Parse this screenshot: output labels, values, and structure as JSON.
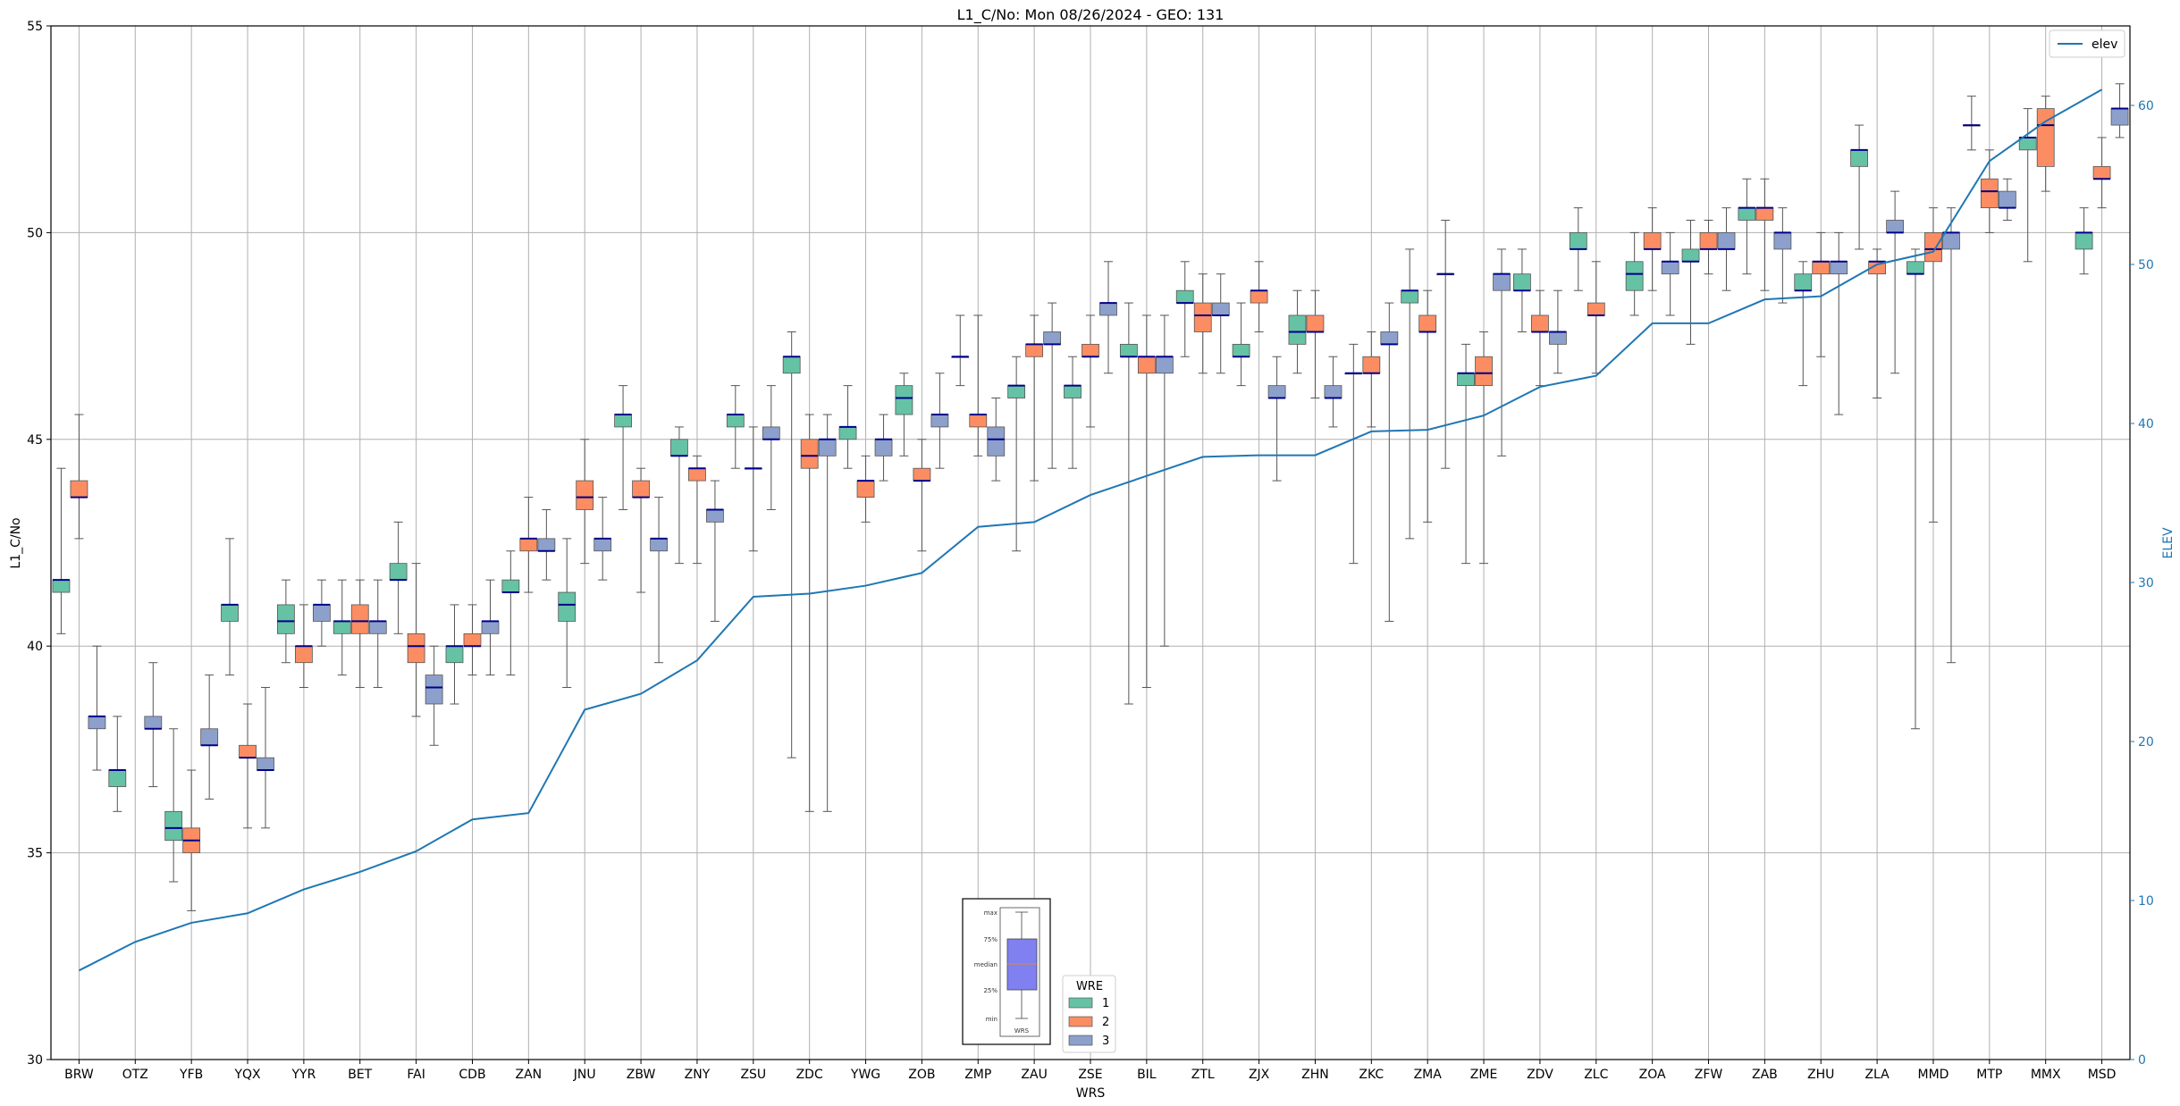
{
  "chart_data": {
    "type": "box",
    "title": "L1_C/No: Mon 08/26/2024 - GEO: 131",
    "xlabel": "WRS",
    "ylabel": "L1_C/No",
    "y2label": "ELEV",
    "ylim": [
      30,
      55
    ],
    "y2lim": [
      0,
      65
    ],
    "yticks": [
      30,
      35,
      40,
      45,
      50,
      55
    ],
    "y2ticks": [
      0,
      10,
      20,
      30,
      40,
      50,
      60
    ],
    "grid": true,
    "line_legend": {
      "label": "elev",
      "placement": "top-right"
    },
    "legend": {
      "title": "WRE",
      "placement": "bottom-center"
    },
    "colors": {
      "wre1": "#66c2a5",
      "wre2": "#fc8d62",
      "wre3": "#8da0cb",
      "median": "#00008b",
      "elev": "#1f77b4",
      "whisker": "#555555",
      "y2axis": "#1f77b4"
    },
    "wre_labels": [
      "1",
      "2",
      "3"
    ],
    "inset_legend": {
      "labels": [
        "max",
        "75%",
        "median",
        "25%",
        "min"
      ],
      "caption": "WRS",
      "box_color": "#8080f0"
    },
    "categories": [
      "BRW",
      "OTZ",
      "YFB",
      "YQX",
      "YYR",
      "BET",
      "FAI",
      "CDB",
      "ZAN",
      "JNU",
      "ZBW",
      "ZNY",
      "ZSU",
      "ZDC",
      "YWG",
      "ZOB",
      "ZMP",
      "ZAU",
      "ZSE",
      "BIL",
      "ZTL",
      "ZJX",
      "ZHN",
      "ZKC",
      "ZMA",
      "ZME",
      "ZDV",
      "ZLC",
      "ZOA",
      "ZFW",
      "ZAB",
      "ZHU",
      "ZLA",
      "MMD",
      "MTP",
      "MMX",
      "MSD"
    ],
    "elev": [
      5.6,
      7.4,
      8.6,
      9.2,
      10.7,
      11.8,
      13.1,
      15.1,
      15.5,
      22.0,
      23.0,
      25.1,
      29.1,
      29.3,
      29.8,
      30.6,
      33.5,
      33.8,
      35.5,
      36.7,
      37.9,
      38.0,
      38.0,
      39.5,
      39.6,
      40.5,
      42.3,
      43.0,
      46.3,
      46.3,
      47.8,
      48.0,
      50.0,
      50.8,
      56.5,
      59.0,
      61.0
    ],
    "boxes": [
      {
        "station": "BRW",
        "wre": 1,
        "min": 40.3,
        "q1": 41.3,
        "median": 41.6,
        "q3": 41.6,
        "max": 44.3
      },
      {
        "station": "BRW",
        "wre": 2,
        "min": 42.6,
        "q1": 43.6,
        "median": 43.6,
        "q3": 44.0,
        "max": 45.6
      },
      {
        "station": "BRW",
        "wre": 3,
        "min": 37.0,
        "q1": 38.0,
        "median": 38.3,
        "q3": 38.3,
        "max": 40.0
      },
      {
        "station": "OTZ",
        "wre": 1,
        "min": 36.0,
        "q1": 36.6,
        "median": 37.0,
        "q3": 37.0,
        "max": 38.3
      },
      {
        "station": "OTZ",
        "wre": 3,
        "min": 36.6,
        "q1": 38.0,
        "median": 38.0,
        "q3": 38.3,
        "max": 39.6
      },
      {
        "station": "YFB",
        "wre": 1,
        "min": 34.3,
        "q1": 35.3,
        "median": 35.6,
        "q3": 36.0,
        "max": 38.0
      },
      {
        "station": "YFB",
        "wre": 2,
        "min": 33.6,
        "q1": 35.0,
        "median": 35.3,
        "q3": 35.6,
        "max": 37.0
      },
      {
        "station": "YFB",
        "wre": 3,
        "min": 36.3,
        "q1": 37.6,
        "median": 37.6,
        "q3": 38.0,
        "max": 39.3
      },
      {
        "station": "YQX",
        "wre": 1,
        "min": 39.3,
        "q1": 40.6,
        "median": 41.0,
        "q3": 41.0,
        "max": 42.6
      },
      {
        "station": "YQX",
        "wre": 2,
        "min": 35.6,
        "q1": 37.3,
        "median": 37.3,
        "q3": 37.6,
        "max": 38.6
      },
      {
        "station": "YQX",
        "wre": 3,
        "min": 35.6,
        "q1": 37.0,
        "median": 37.0,
        "q3": 37.3,
        "max": 39.0
      },
      {
        "station": "YYR",
        "wre": 1,
        "min": 39.6,
        "q1": 40.3,
        "median": 40.6,
        "q3": 41.0,
        "max": 41.6
      },
      {
        "station": "YYR",
        "wre": 2,
        "min": 39.0,
        "q1": 39.6,
        "median": 40.0,
        "q3": 40.0,
        "max": 41.0
      },
      {
        "station": "YYR",
        "wre": 3,
        "min": 40.0,
        "q1": 40.6,
        "median": 41.0,
        "q3": 41.0,
        "max": 41.6
      },
      {
        "station": "BET",
        "wre": 1,
        "min": 39.3,
        "q1": 40.3,
        "median": 40.6,
        "q3": 40.6,
        "max": 41.6
      },
      {
        "station": "BET",
        "wre": 2,
        "min": 39.0,
        "q1": 40.3,
        "median": 40.6,
        "q3": 41.0,
        "max": 41.6
      },
      {
        "station": "BET",
        "wre": 3,
        "min": 39.0,
        "q1": 40.3,
        "median": 40.6,
        "q3": 40.6,
        "max": 41.6
      },
      {
        "station": "FAI",
        "wre": 1,
        "min": 40.3,
        "q1": 41.6,
        "median": 41.6,
        "q3": 42.0,
        "max": 43.0
      },
      {
        "station": "FAI",
        "wre": 2,
        "min": 38.3,
        "q1": 39.6,
        "median": 40.0,
        "q3": 40.3,
        "max": 42.0
      },
      {
        "station": "FAI",
        "wre": 3,
        "min": 37.6,
        "q1": 38.6,
        "median": 39.0,
        "q3": 39.3,
        "max": 40.0
      },
      {
        "station": "CDB",
        "wre": 1,
        "min": 38.6,
        "q1": 39.6,
        "median": 40.0,
        "q3": 40.0,
        "max": 41.0
      },
      {
        "station": "CDB",
        "wre": 2,
        "min": 39.3,
        "q1": 40.0,
        "median": 40.0,
        "q3": 40.3,
        "max": 41.0
      },
      {
        "station": "CDB",
        "wre": 3,
        "min": 39.3,
        "q1": 40.3,
        "median": 40.6,
        "q3": 40.6,
        "max": 41.6
      },
      {
        "station": "ZAN",
        "wre": 1,
        "min": 39.3,
        "q1": 41.3,
        "median": 41.3,
        "q3": 41.6,
        "max": 42.3
      },
      {
        "station": "ZAN",
        "wre": 2,
        "min": 41.3,
        "q1": 42.3,
        "median": 42.6,
        "q3": 42.6,
        "max": 43.6
      },
      {
        "station": "ZAN",
        "wre": 3,
        "min": 41.6,
        "q1": 42.3,
        "median": 42.3,
        "q3": 42.6,
        "max": 43.3
      },
      {
        "station": "JNU",
        "wre": 1,
        "min": 39.0,
        "q1": 40.6,
        "median": 41.0,
        "q3": 41.3,
        "max": 42.6
      },
      {
        "station": "JNU",
        "wre": 2,
        "min": 42.0,
        "q1": 43.3,
        "median": 43.6,
        "q3": 44.0,
        "max": 45.0
      },
      {
        "station": "JNU",
        "wre": 3,
        "min": 41.6,
        "q1": 42.3,
        "median": 42.6,
        "q3": 42.6,
        "max": 43.6
      },
      {
        "station": "ZBW",
        "wre": 1,
        "min": 43.3,
        "q1": 45.3,
        "median": 45.6,
        "q3": 45.6,
        "max": 46.3
      },
      {
        "station": "ZBW",
        "wre": 2,
        "min": 41.3,
        "q1": 43.6,
        "median": 43.6,
        "q3": 44.0,
        "max": 44.3
      },
      {
        "station": "ZBW",
        "wre": 3,
        "min": 39.6,
        "q1": 42.3,
        "median": 42.6,
        "q3": 42.6,
        "max": 43.6
      },
      {
        "station": "ZNY",
        "wre": 1,
        "min": 42.0,
        "q1": 44.6,
        "median": 44.6,
        "q3": 45.0,
        "max": 45.3
      },
      {
        "station": "ZNY",
        "wre": 2,
        "min": 42.0,
        "q1": 44.0,
        "median": 44.3,
        "q3": 44.3,
        "max": 44.6
      },
      {
        "station": "ZNY",
        "wre": 3,
        "min": 40.6,
        "q1": 43.0,
        "median": 43.3,
        "q3": 43.3,
        "max": 44.0
      },
      {
        "station": "ZSU",
        "wre": 1,
        "min": 44.3,
        "q1": 45.3,
        "median": 45.6,
        "q3": 45.6,
        "max": 46.3
      },
      {
        "station": "ZSU",
        "wre": 2,
        "min": 42.3,
        "q1": 44.3,
        "median": 44.3,
        "q3": 44.3,
        "max": 45.3
      },
      {
        "station": "ZSU",
        "wre": 3,
        "min": 43.3,
        "q1": 45.0,
        "median": 45.0,
        "q3": 45.3,
        "max": 46.3
      },
      {
        "station": "ZDC",
        "wre": 1,
        "min": 37.3,
        "q1": 46.6,
        "median": 47.0,
        "q3": 47.0,
        "max": 47.6
      },
      {
        "station": "ZDC",
        "wre": 2,
        "min": 36.0,
        "q1": 44.3,
        "median": 44.6,
        "q3": 45.0,
        "max": 45.6
      },
      {
        "station": "ZDC",
        "wre": 3,
        "min": 36.0,
        "q1": 44.6,
        "median": 45.0,
        "q3": 45.0,
        "max": 45.6
      },
      {
        "station": "YWG",
        "wre": 1,
        "min": 44.3,
        "q1": 45.0,
        "median": 45.3,
        "q3": 45.3,
        "max": 46.3
      },
      {
        "station": "YWG",
        "wre": 2,
        "min": 43.0,
        "q1": 43.6,
        "median": 44.0,
        "q3": 44.0,
        "max": 44.6
      },
      {
        "station": "YWG",
        "wre": 3,
        "min": 44.0,
        "q1": 44.6,
        "median": 45.0,
        "q3": 45.0,
        "max": 45.6
      },
      {
        "station": "ZOB",
        "wre": 1,
        "min": 44.6,
        "q1": 45.6,
        "median": 46.0,
        "q3": 46.3,
        "max": 46.6
      },
      {
        "station": "ZOB",
        "wre": 2,
        "min": 42.3,
        "q1": 44.0,
        "median": 44.0,
        "q3": 44.3,
        "max": 45.0
      },
      {
        "station": "ZOB",
        "wre": 3,
        "min": 44.3,
        "q1": 45.3,
        "median": 45.6,
        "q3": 45.6,
        "max": 46.6
      },
      {
        "station": "ZMP",
        "wre": 1,
        "min": 46.3,
        "q1": 47.0,
        "median": 47.0,
        "q3": 47.0,
        "max": 48.0
      },
      {
        "station": "ZMP",
        "wre": 2,
        "min": 44.6,
        "q1": 45.3,
        "median": 45.6,
        "q3": 45.6,
        "max": 48.0
      },
      {
        "station": "ZMP",
        "wre": 3,
        "min": 44.0,
        "q1": 44.6,
        "median": 45.0,
        "q3": 45.3,
        "max": 46.0
      },
      {
        "station": "ZAU",
        "wre": 1,
        "min": 42.3,
        "q1": 46.0,
        "median": 46.3,
        "q3": 46.3,
        "max": 47.0
      },
      {
        "station": "ZAU",
        "wre": 2,
        "min": 44.0,
        "q1": 47.0,
        "median": 47.3,
        "q3": 47.3,
        "max": 48.0
      },
      {
        "station": "ZAU",
        "wre": 3,
        "min": 44.3,
        "q1": 47.3,
        "median": 47.3,
        "q3": 47.6,
        "max": 48.3
      },
      {
        "station": "ZSE",
        "wre": 1,
        "min": 44.3,
        "q1": 46.0,
        "median": 46.3,
        "q3": 46.3,
        "max": 47.0
      },
      {
        "station": "ZSE",
        "wre": 2,
        "min": 45.3,
        "q1": 47.0,
        "median": 47.0,
        "q3": 47.3,
        "max": 48.0
      },
      {
        "station": "ZSE",
        "wre": 3,
        "min": 46.6,
        "q1": 48.0,
        "median": 48.3,
        "q3": 48.3,
        "max": 49.3
      },
      {
        "station": "BIL",
        "wre": 1,
        "min": 38.6,
        "q1": 47.0,
        "median": 47.0,
        "q3": 47.3,
        "max": 48.3
      },
      {
        "station": "BIL",
        "wre": 2,
        "min": 39.0,
        "q1": 46.6,
        "median": 47.0,
        "q3": 47.0,
        "max": 48.0
      },
      {
        "station": "BIL",
        "wre": 3,
        "min": 40.0,
        "q1": 46.6,
        "median": 47.0,
        "q3": 47.0,
        "max": 48.0
      },
      {
        "station": "ZTL",
        "wre": 1,
        "min": 47.0,
        "q1": 48.3,
        "median": 48.3,
        "q3": 48.6,
        "max": 49.3
      },
      {
        "station": "ZTL",
        "wre": 2,
        "min": 46.6,
        "q1": 47.6,
        "median": 48.0,
        "q3": 48.3,
        "max": 49.0
      },
      {
        "station": "ZTL",
        "wre": 3,
        "min": 46.6,
        "q1": 48.0,
        "median": 48.0,
        "q3": 48.3,
        "max": 49.0
      },
      {
        "station": "ZJX",
        "wre": 1,
        "min": 46.3,
        "q1": 47.0,
        "median": 47.0,
        "q3": 47.3,
        "max": 48.3
      },
      {
        "station": "ZJX",
        "wre": 2,
        "min": 47.6,
        "q1": 48.3,
        "median": 48.6,
        "q3": 48.6,
        "max": 49.3
      },
      {
        "station": "ZJX",
        "wre": 3,
        "min": 44.0,
        "q1": 46.0,
        "median": 46.0,
        "q3": 46.3,
        "max": 47.0
      },
      {
        "station": "ZHN",
        "wre": 1,
        "min": 46.6,
        "q1": 47.3,
        "median": 47.6,
        "q3": 48.0,
        "max": 48.6
      },
      {
        "station": "ZHN",
        "wre": 2,
        "min": 46.0,
        "q1": 47.6,
        "median": 47.6,
        "q3": 48.0,
        "max": 48.6
      },
      {
        "station": "ZHN",
        "wre": 3,
        "min": 45.3,
        "q1": 46.0,
        "median": 46.0,
        "q3": 46.3,
        "max": 47.0
      },
      {
        "station": "ZKC",
        "wre": 1,
        "min": 42.0,
        "q1": 46.6,
        "median": 46.6,
        "q3": 46.6,
        "max": 47.3
      },
      {
        "station": "ZKC",
        "wre": 2,
        "min": 45.3,
        "q1": 46.6,
        "median": 46.6,
        "q3": 47.0,
        "max": 47.6
      },
      {
        "station": "ZKC",
        "wre": 3,
        "min": 40.6,
        "q1": 47.3,
        "median": 47.3,
        "q3": 47.6,
        "max": 48.3
      },
      {
        "station": "ZMA",
        "wre": 1,
        "min": 42.6,
        "q1": 48.3,
        "median": 48.6,
        "q3": 48.6,
        "max": 49.6
      },
      {
        "station": "ZMA",
        "wre": 2,
        "min": 43.0,
        "q1": 47.6,
        "median": 47.6,
        "q3": 48.0,
        "max": 48.6
      },
      {
        "station": "ZMA",
        "wre": 3,
        "min": 44.3,
        "q1": 49.0,
        "median": 49.0,
        "q3": 49.0,
        "max": 50.3
      },
      {
        "station": "ZME",
        "wre": 1,
        "min": 42.0,
        "q1": 46.3,
        "median": 46.6,
        "q3": 46.6,
        "max": 47.3
      },
      {
        "station": "ZME",
        "wre": 2,
        "min": 42.0,
        "q1": 46.3,
        "median": 46.6,
        "q3": 47.0,
        "max": 47.6
      },
      {
        "station": "ZME",
        "wre": 3,
        "min": 44.6,
        "q1": 48.6,
        "median": 49.0,
        "q3": 49.0,
        "max": 49.6
      },
      {
        "station": "ZDV",
        "wre": 1,
        "min": 47.6,
        "q1": 48.6,
        "median": 48.6,
        "q3": 49.0,
        "max": 49.6
      },
      {
        "station": "ZDV",
        "wre": 2,
        "min": 46.3,
        "q1": 47.6,
        "median": 47.6,
        "q3": 48.0,
        "max": 48.6
      },
      {
        "station": "ZDV",
        "wre": 3,
        "min": 46.6,
        "q1": 47.3,
        "median": 47.6,
        "q3": 47.6,
        "max": 48.6
      },
      {
        "station": "ZLC",
        "wre": 1,
        "min": 48.6,
        "q1": 49.6,
        "median": 49.6,
        "q3": 50.0,
        "max": 50.6
      },
      {
        "station": "ZLC",
        "wre": 2,
        "min": 46.6,
        "q1": 48.0,
        "median": 48.0,
        "q3": 48.3,
        "max": 49.3
      },
      {
        "station": "ZOA",
        "wre": 1,
        "min": 48.0,
        "q1": 48.6,
        "median": 49.0,
        "q3": 49.3,
        "max": 50.0
      },
      {
        "station": "ZOA",
        "wre": 2,
        "min": 48.6,
        "q1": 49.6,
        "median": 49.6,
        "q3": 50.0,
        "max": 50.6
      },
      {
        "station": "ZOA",
        "wre": 3,
        "min": 48.0,
        "q1": 49.0,
        "median": 49.3,
        "q3": 49.3,
        "max": 50.0
      },
      {
        "station": "ZFW",
        "wre": 1,
        "min": 47.3,
        "q1": 49.3,
        "median": 49.3,
        "q3": 49.6,
        "max": 50.3
      },
      {
        "station": "ZFW",
        "wre": 2,
        "min": 49.0,
        "q1": 49.6,
        "median": 49.6,
        "q3": 50.0,
        "max": 50.3
      },
      {
        "station": "ZFW",
        "wre": 3,
        "min": 48.6,
        "q1": 49.6,
        "median": 49.6,
        "q3": 50.0,
        "max": 50.6
      },
      {
        "station": "ZAB",
        "wre": 1,
        "min": 49.0,
        "q1": 50.3,
        "median": 50.6,
        "q3": 50.6,
        "max": 51.3
      },
      {
        "station": "ZAB",
        "wre": 2,
        "min": 48.6,
        "q1": 50.3,
        "median": 50.6,
        "q3": 50.6,
        "max": 51.3
      },
      {
        "station": "ZAB",
        "wre": 3,
        "min": 48.3,
        "q1": 49.6,
        "median": 50.0,
        "q3": 50.0,
        "max": 50.6
      },
      {
        "station": "ZHU",
        "wre": 1,
        "min": 46.3,
        "q1": 48.6,
        "median": 48.6,
        "q3": 49.0,
        "max": 49.3
      },
      {
        "station": "ZHU",
        "wre": 2,
        "min": 47.0,
        "q1": 49.0,
        "median": 49.3,
        "q3": 49.3,
        "max": 50.0
      },
      {
        "station": "ZHU",
        "wre": 3,
        "min": 45.6,
        "q1": 49.0,
        "median": 49.3,
        "q3": 49.3,
        "max": 50.0
      },
      {
        "station": "ZLA",
        "wre": 1,
        "min": 49.6,
        "q1": 51.6,
        "median": 52.0,
        "q3": 52.0,
        "max": 52.6
      },
      {
        "station": "ZLA",
        "wre": 2,
        "min": 46.0,
        "q1": 49.0,
        "median": 49.3,
        "q3": 49.3,
        "max": 49.6
      },
      {
        "station": "ZLA",
        "wre": 3,
        "min": 46.6,
        "q1": 50.0,
        "median": 50.0,
        "q3": 50.3,
        "max": 51.0
      },
      {
        "station": "MMD",
        "wre": 1,
        "min": 38.0,
        "q1": 49.0,
        "median": 49.0,
        "q3": 49.3,
        "max": 49.6
      },
      {
        "station": "MMD",
        "wre": 2,
        "min": 43.0,
        "q1": 49.3,
        "median": 49.6,
        "q3": 50.0,
        "max": 50.6
      },
      {
        "station": "MMD",
        "wre": 3,
        "min": 39.6,
        "q1": 49.6,
        "median": 50.0,
        "q3": 50.0,
        "max": 50.6
      },
      {
        "station": "MTP",
        "wre": 1,
        "min": 52.0,
        "q1": 52.6,
        "median": 52.6,
        "q3": 52.6,
        "max": 53.3
      },
      {
        "station": "MTP",
        "wre": 2,
        "min": 50.0,
        "q1": 50.6,
        "median": 51.0,
        "q3": 51.3,
        "max": 52.0
      },
      {
        "station": "MTP",
        "wre": 3,
        "min": 50.3,
        "q1": 50.6,
        "median": 50.6,
        "q3": 51.0,
        "max": 51.3
      },
      {
        "station": "MMX",
        "wre": 1,
        "min": 49.3,
        "q1": 52.0,
        "median": 52.3,
        "q3": 52.3,
        "max": 53.0
      },
      {
        "station": "MMX",
        "wre": 2,
        "min": 51.0,
        "q1": 51.6,
        "median": 52.6,
        "q3": 53.0,
        "max": 53.3
      },
      {
        "station": "MSD",
        "wre": 1,
        "min": 49.0,
        "q1": 49.6,
        "median": 50.0,
        "q3": 50.0,
        "max": 50.6
      },
      {
        "station": "MSD",
        "wre": 2,
        "min": 50.6,
        "q1": 51.3,
        "median": 51.3,
        "q3": 51.6,
        "max": 52.3
      },
      {
        "station": "MSD",
        "wre": 3,
        "min": 52.3,
        "q1": 52.6,
        "median": 53.0,
        "q3": 53.0,
        "max": 53.6
      }
    ]
  }
}
